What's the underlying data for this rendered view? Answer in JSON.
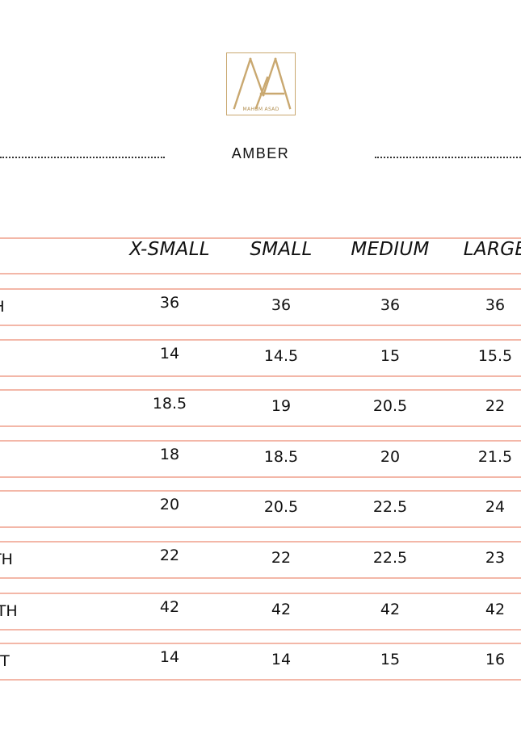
{
  "brand": {
    "logo_text": "MAHUM ASAD",
    "logo_icon": "ma-monogram-icon",
    "accent": "#c9a870"
  },
  "collection": "AMBER",
  "line_color": "#f3b7a8",
  "table": {
    "headers": [
      "X-SMALL",
      "SMALL",
      "MEDIUM",
      "LARGE"
    ],
    "rows": [
      {
        "label": "H",
        "values": [
          "36",
          "36",
          "36",
          "36"
        ]
      },
      {
        "label": "",
        "values": [
          "14",
          "14.5",
          "15",
          "15.5"
        ]
      },
      {
        "label": "",
        "values": [
          "18.5",
          "19",
          "20.5",
          "22"
        ]
      },
      {
        "label": "",
        "values": [
          "18",
          "18.5",
          "20",
          "21.5"
        ]
      },
      {
        "label": "",
        "values": [
          "20",
          "20.5",
          "22.5",
          "24"
        ]
      },
      {
        "label": "GTH",
        "values": [
          "22",
          "22",
          "22.5",
          "23"
        ]
      },
      {
        "label": "NGTH",
        "values": [
          "42",
          "42",
          "42",
          "42"
        ]
      },
      {
        "label": "IST",
        "values": [
          "14",
          "14",
          "15",
          "16"
        ]
      }
    ]
  }
}
